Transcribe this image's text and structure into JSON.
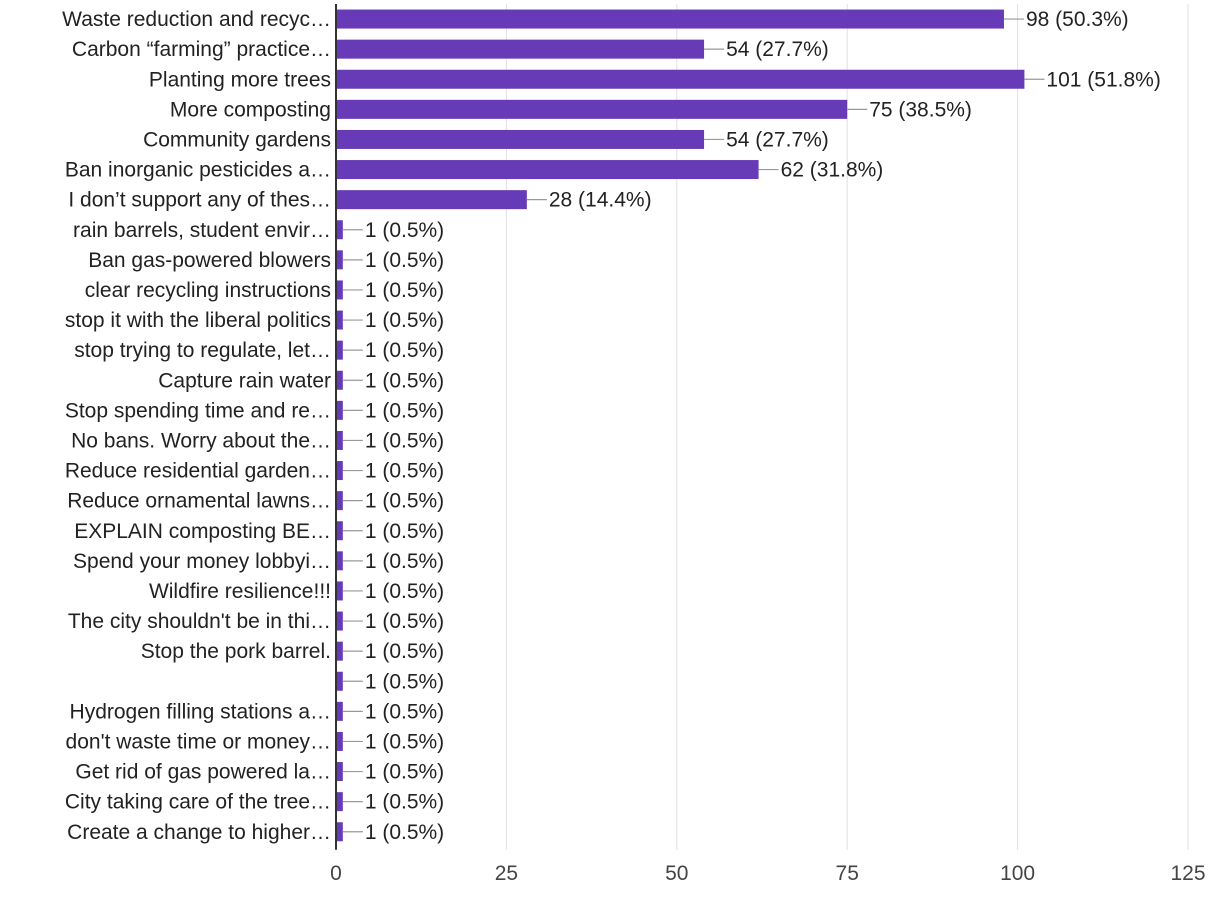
{
  "chart_data": {
    "type": "bar",
    "orientation": "horizontal",
    "categories": [
      "Waste reduction and recyc…",
      "Carbon “farming” practice…",
      "Planting more trees",
      "More composting",
      "Community gardens",
      "Ban inorganic pesticides a…",
      "I don’t support any of thes…",
      "rain barrels, student envir…",
      "Ban gas-powered blowers",
      "clear recycling instructions",
      "stop it with the liberal politics",
      "stop trying to regulate, let…",
      "Capture rain water",
      "Stop spending time and re…",
      "No bans. Worry about the…",
      "Reduce residential garden…",
      "Reduce ornamental lawns…",
      "EXPLAIN composting BE…",
      "Spend your money lobbyi…",
      "Wildfire resilience!!!",
      "The city shouldn't be in thi…",
      "Stop the pork barrel.",
      "",
      "Hydrogen filling stations a…",
      "don't waste time or money…",
      "Get rid of gas powered la…",
      "City taking care of the tree…",
      "Create a change to higher…"
    ],
    "values": [
      98,
      54,
      101,
      75,
      54,
      62,
      28,
      1,
      1,
      1,
      1,
      1,
      1,
      1,
      1,
      1,
      1,
      1,
      1,
      1,
      1,
      1,
      1,
      1,
      1,
      1,
      1,
      1
    ],
    "value_labels": [
      "98 (50.3%)",
      "54 (27.7%)",
      "101 (51.8%)",
      "75 (38.5%)",
      "54 (27.7%)",
      "62 (31.8%)",
      "28 (14.4%)",
      "1 (0.5%)",
      "1 (0.5%)",
      "1 (0.5%)",
      "1 (0.5%)",
      "1 (0.5%)",
      "1 (0.5%)",
      "1 (0.5%)",
      "1 (0.5%)",
      "1 (0.5%)",
      "1 (0.5%)",
      "1 (0.5%)",
      "1 (0.5%)",
      "1 (0.5%)",
      "1 (0.5%)",
      "1 (0.5%)",
      "1 (0.5%)",
      "1 (0.5%)",
      "1 (0.5%)",
      "1 (0.5%)",
      "1 (0.5%)",
      "1 (0.5%)"
    ],
    "xlim": [
      0,
      125
    ],
    "x_ticks": [
      0,
      25,
      50,
      75,
      100,
      125
    ],
    "grid": true,
    "bar_color": "#673ab7",
    "grid_color": "#e0e0e0",
    "axis_color": "#333333",
    "title": "",
    "xlabel": "",
    "ylabel": ""
  }
}
